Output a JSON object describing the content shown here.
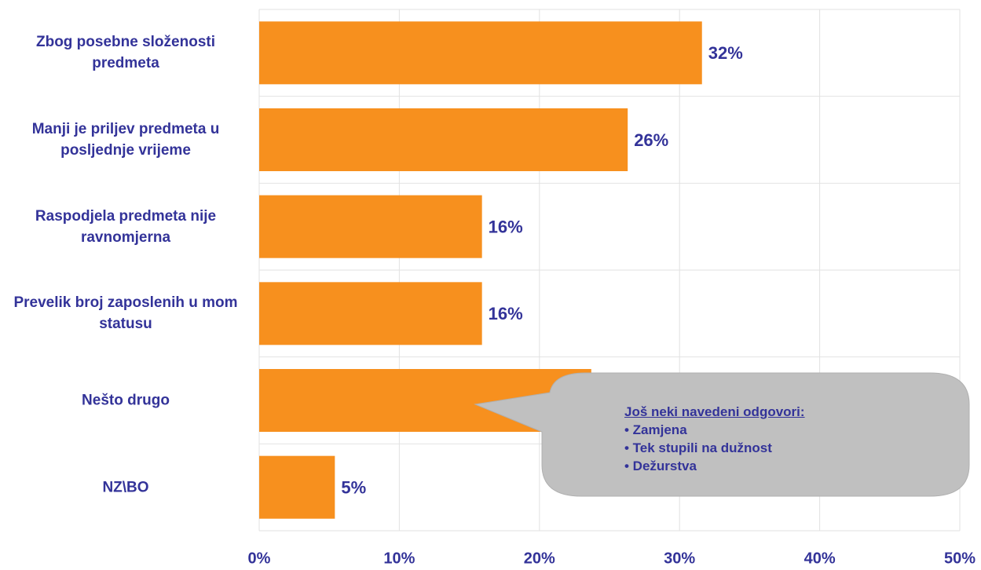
{
  "chart_data": {
    "type": "bar",
    "orientation": "horizontal",
    "categories": [
      "Zbog posebne složenosti predmeta",
      "Manji je priljev predmeta u posljednje vrijeme",
      "Raspodjela predmeta nije ravnomjerna",
      "Prevelik broj zaposlenih u mom statusu",
      "Nešto drugo",
      "NZ\\BO"
    ],
    "values": [
      31.6,
      26.3,
      15.9,
      15.9,
      23.7,
      5.4
    ],
    "value_labels": [
      "32%",
      "26%",
      "16%",
      "16%",
      null,
      "5%"
    ],
    "color": "#f7901e",
    "xlim": [
      0,
      50
    ],
    "xticks": [
      {
        "value": 0,
        "label": "0%"
      },
      {
        "value": 10,
        "label": "10%"
      },
      {
        "value": 20,
        "label": "20%"
      },
      {
        "value": 30,
        "label": "30%"
      },
      {
        "value": 40,
        "label": "40%"
      },
      {
        "value": 50,
        "label": "50%"
      }
    ],
    "grid": true,
    "annotation": {
      "title": "Još neki navedeni odgovori:",
      "items": [
        "• Zamjena",
        "• Tek stupili na dužnost",
        "• Dežurstva"
      ]
    }
  }
}
